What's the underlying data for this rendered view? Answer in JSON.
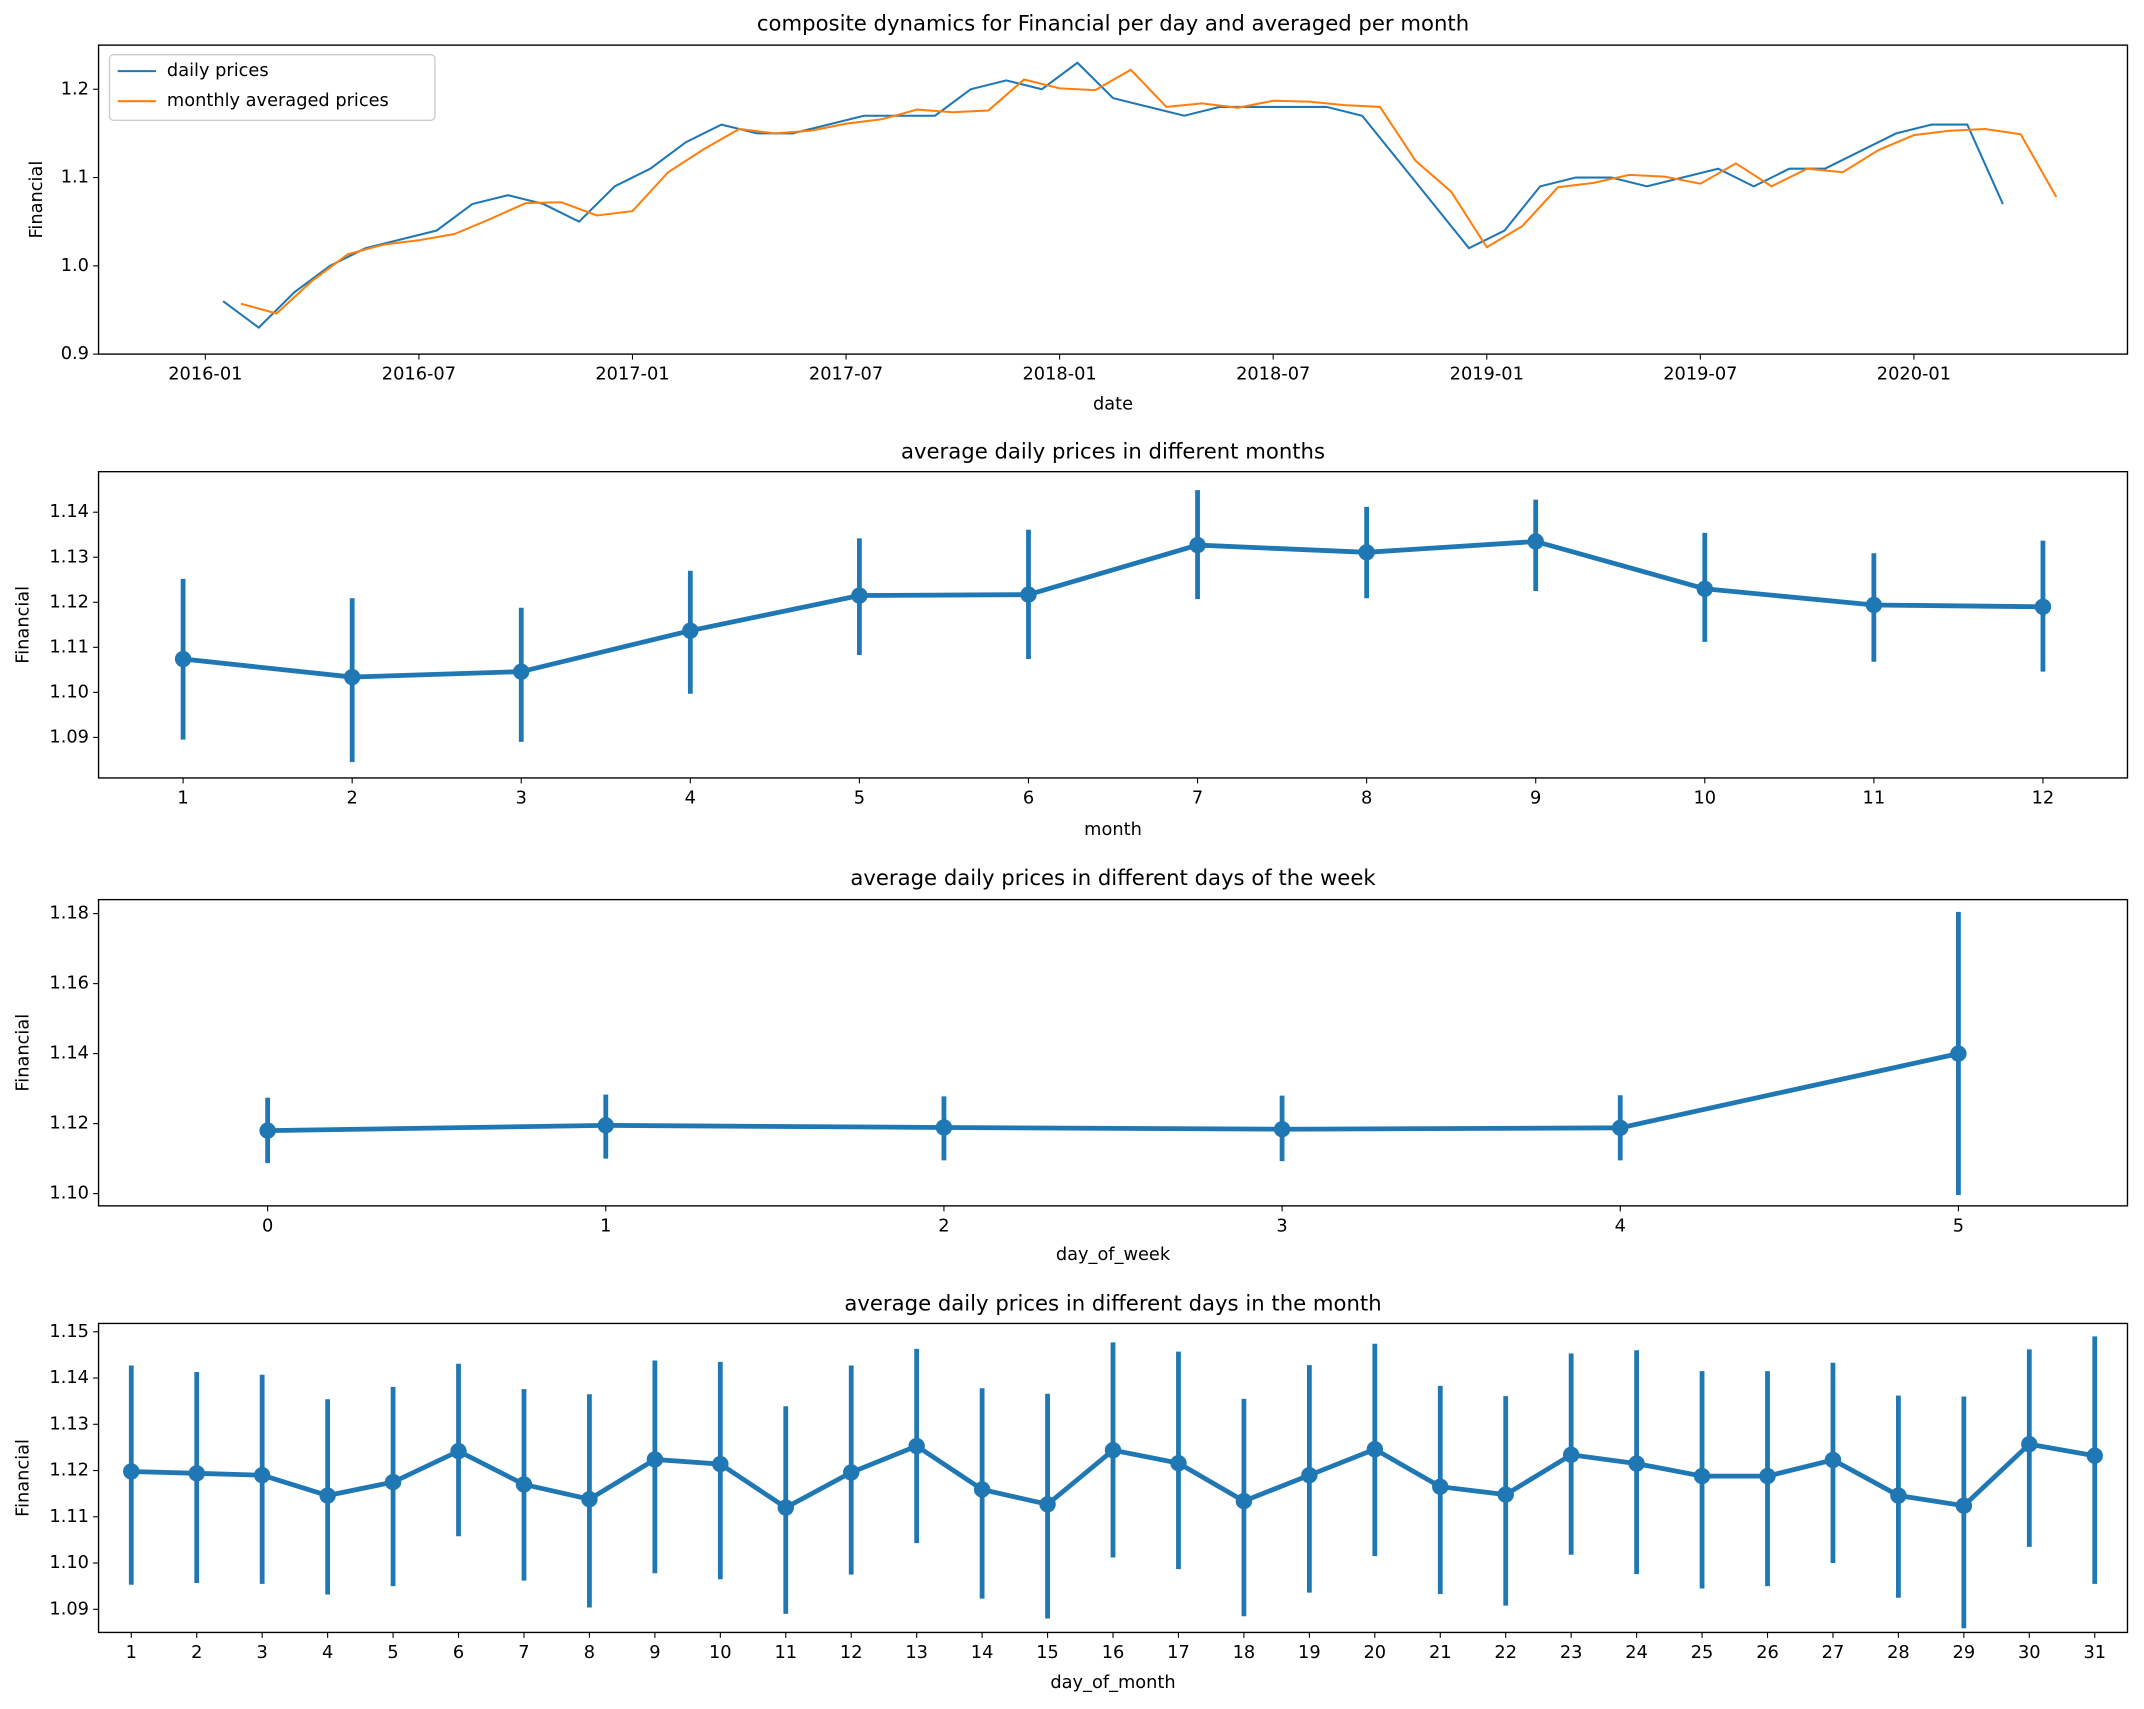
{
  "chart_data": [
    {
      "type": "line",
      "title": "composite dynamics for Financial per day and averaged per month",
      "xlabel": "date",
      "ylabel": "Financial",
      "xlim": [
        "2015-10",
        "2020-07"
      ],
      "ylim": [
        0.9,
        1.25
      ],
      "xticks": [
        "2016-01",
        "2016-07",
        "2017-01",
        "2017-07",
        "2018-01",
        "2018-07",
        "2019-01",
        "2019-07",
        "2020-01"
      ],
      "yticks": [
        0.9,
        {
          "value": 1,
          "label": "1.0"
        },
        1.1,
        1.2
      ],
      "legend": "upper left",
      "series": [
        {
          "name": "daily prices",
          "color": "#1f77b4",
          "x": [
            "2016-01",
            "2016-02",
            "2016-03",
            "2016-04",
            "2016-05",
            "2016-06",
            "2016-07",
            "2016-08",
            "2016-09",
            "2016-10",
            "2016-11",
            "2016-12",
            "2017-01",
            "2017-02",
            "2017-03",
            "2017-04",
            "2017-05",
            "2017-06",
            "2017-07",
            "2017-08",
            "2017-09",
            "2017-10",
            "2017-11",
            "2017-12",
            "2018-01",
            "2018-02",
            "2018-03",
            "2018-04",
            "2018-05",
            "2018-06",
            "2018-07",
            "2018-08",
            "2018-09",
            "2018-10",
            "2018-11",
            "2018-12",
            "2019-01",
            "2019-02",
            "2019-03",
            "2019-04",
            "2019-05",
            "2019-06",
            "2019-07",
            "2019-08",
            "2019-09",
            "2019-10",
            "2019-11",
            "2019-12",
            "2020-01",
            "2020-02",
            "2020-03"
          ],
          "values": [
            0.96,
            0.93,
            0.97,
            1.0,
            1.02,
            1.03,
            1.04,
            1.07,
            1.08,
            1.07,
            1.05,
            1.09,
            1.11,
            1.14,
            1.16,
            1.15,
            1.15,
            1.16,
            1.17,
            1.17,
            1.17,
            1.2,
            1.21,
            1.2,
            1.23,
            1.19,
            1.18,
            1.17,
            1.18,
            1.18,
            1.18,
            1.18,
            1.17,
            1.12,
            1.07,
            1.02,
            1.04,
            1.09,
            1.1,
            1.1,
            1.09,
            1.1,
            1.11,
            1.09,
            1.11,
            1.11,
            1.13,
            1.15,
            1.16,
            1.16,
            1.07
          ]
        },
        {
          "name": "monthly averaged prices",
          "color": "#ff7f0e",
          "x": [
            "2016-01",
            "2016-02",
            "2016-03",
            "2016-04",
            "2016-05",
            "2016-06",
            "2016-07",
            "2016-08",
            "2016-09",
            "2016-10",
            "2016-11",
            "2016-12",
            "2017-01",
            "2017-02",
            "2017-03",
            "2017-04",
            "2017-05",
            "2017-06",
            "2017-07",
            "2017-08",
            "2017-09",
            "2017-10",
            "2017-11",
            "2017-12",
            "2018-01",
            "2018-02",
            "2018-03",
            "2018-04",
            "2018-05",
            "2018-06",
            "2018-07",
            "2018-08",
            "2018-09",
            "2018-10",
            "2018-11",
            "2018-12",
            "2019-01",
            "2019-02",
            "2019-03",
            "2019-04",
            "2019-05",
            "2019-06",
            "2019-07",
            "2019-08",
            "2019-09",
            "2019-10",
            "2019-11",
            "2019-12",
            "2020-01",
            "2020-02",
            "2020-03",
            "2020-04"
          ],
          "values": [
            0.957,
            0.946,
            0.983,
            1.013,
            1.024,
            1.029,
            1.036,
            1.053,
            1.071,
            1.072,
            1.057,
            1.062,
            1.106,
            1.132,
            1.155,
            1.15,
            1.153,
            1.161,
            1.166,
            1.177,
            1.174,
            1.176,
            1.211,
            1.201,
            1.199,
            1.222,
            1.18,
            1.184,
            1.179,
            1.187,
            1.186,
            1.182,
            1.18,
            1.119,
            1.084,
            1.021,
            1.045,
            1.089,
            1.094,
            1.103,
            1.101,
            1.093,
            1.116,
            1.09,
            1.11,
            1.106,
            1.131,
            1.148,
            1.153,
            1.155,
            1.149,
            1.078
          ]
        }
      ]
    },
    {
      "type": "point",
      "title": "average daily prices in different months",
      "xlabel": "month",
      "ylabel": "Financial",
      "color": "#1f77b4",
      "ylim": [
        1.081,
        1.149
      ],
      "yticks": [
        1.09,
        {
          "value": 1.1,
          "label": "1.10"
        },
        1.11,
        1.12,
        1.13,
        1.14
      ],
      "categories": [
        1,
        2,
        3,
        4,
        5,
        6,
        7,
        8,
        9,
        10,
        11,
        12
      ],
      "values": [
        1.1074,
        1.1034,
        1.1046,
        1.1137,
        1.1215,
        1.1217,
        1.1327,
        1.1311,
        1.1335,
        1.123,
        1.1194,
        1.119
      ],
      "lower": [
        1.0895,
        1.0845,
        1.089,
        1.0997,
        1.1083,
        1.1074,
        1.1207,
        1.1209,
        1.1225,
        1.1112,
        1.1068,
        1.1046
      ],
      "upper": [
        1.1252,
        1.1209,
        1.1188,
        1.127,
        1.1342,
        1.1361,
        1.1449,
        1.1412,
        1.1428,
        1.1354,
        1.1309,
        1.1337
      ]
    },
    {
      "type": "point",
      "title": "average daily prices in different days of the week",
      "xlabel": "day_of_week",
      "ylabel": "Financial",
      "color": "#1f77b4",
      "ylim": [
        1.0965,
        1.184
      ],
      "yticks": [
        {
          "value": 1.1,
          "label": "1.10"
        },
        1.12,
        1.14,
        1.16,
        1.18
      ],
      "categories": [
        0,
        1,
        2,
        3,
        4,
        5
      ],
      "values": [
        1.118,
        1.1195,
        1.1189,
        1.1184,
        1.1188,
        1.14
      ],
      "lower": [
        1.1087,
        1.11,
        1.1095,
        1.1093,
        1.1095,
        1.0996
      ],
      "upper": [
        1.1274,
        1.1283,
        1.1278,
        1.128,
        1.1281,
        1.1805
      ]
    },
    {
      "type": "point",
      "title": "average daily prices in different days in the month",
      "xlabel": "day_of_month",
      "ylabel": "Financial",
      "color": "#1f77b4",
      "ylim": [
        1.085,
        1.1518
      ],
      "yticks": [
        1.09,
        {
          "value": 1.1,
          "label": "1.10"
        },
        1.11,
        1.12,
        1.13,
        1.14,
        1.15
      ],
      "categories": [
        1,
        2,
        3,
        4,
        5,
        6,
        7,
        8,
        9,
        10,
        11,
        12,
        13,
        14,
        15,
        16,
        17,
        18,
        19,
        20,
        21,
        22,
        23,
        24,
        25,
        26,
        27,
        28,
        29,
        30,
        31
      ],
      "values": [
        1.1198,
        1.1194,
        1.119,
        1.1146,
        1.1175,
        1.1242,
        1.117,
        1.1138,
        1.1224,
        1.1214,
        1.112,
        1.1196,
        1.1253,
        1.1159,
        1.1127,
        1.1244,
        1.1216,
        1.1134,
        1.119,
        1.1246,
        1.1165,
        1.1148,
        1.1234,
        1.1215,
        1.1188,
        1.1188,
        1.1223,
        1.1146,
        1.1124,
        1.1257,
        1.1232
      ],
      "lower": [
        1.0953,
        1.0957,
        1.0955,
        1.0932,
        1.095,
        1.1058,
        1.0962,
        1.0904,
        1.0978,
        1.0965,
        1.089,
        1.0975,
        1.1043,
        1.0923,
        1.088,
        1.1012,
        1.0987,
        1.0885,
        1.0936,
        1.1015,
        1.0933,
        1.0908,
        1.1018,
        1.0976,
        1.0945,
        1.095,
        1.1,
        1.0925,
        1.0859,
        1.1035,
        1.0955
      ],
      "upper": [
        1.1427,
        1.1413,
        1.1407,
        1.1354,
        1.1381,
        1.1431,
        1.1376,
        1.1365,
        1.1438,
        1.1435,
        1.1339,
        1.1427,
        1.1463,
        1.1378,
        1.1366,
        1.1477,
        1.1457,
        1.1355,
        1.1428,
        1.1474,
        1.1383,
        1.1361,
        1.1453,
        1.146,
        1.1415,
        1.1415,
        1.1433,
        1.1362,
        1.136,
        1.1462,
        1.149
      ]
    }
  ]
}
